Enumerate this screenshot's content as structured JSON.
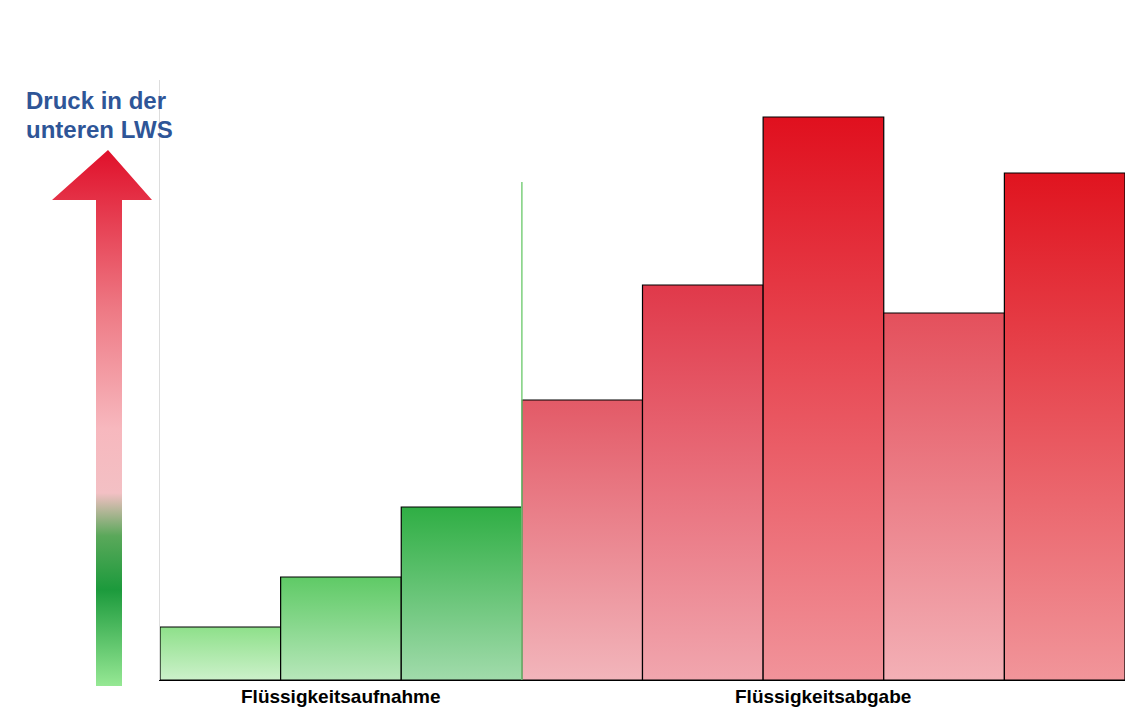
{
  "chart_data": {
    "type": "bar",
    "y_label": "Druck in der unteren LWS",
    "categories": [
      null,
      null,
      null,
      null,
      null,
      null,
      null,
      null
    ],
    "values": [
      53,
      103,
      173,
      280,
      395,
      563,
      367,
      507
    ],
    "colors": [
      "#8ee08a",
      "#5fca66",
      "#2fae44",
      "#e35a67",
      "#e0394a",
      "#e0101e",
      "#e4505c",
      "#e0141f"
    ],
    "groups": [
      {
        "name": "Flüssigkeitsaufnahme",
        "count": 3
      },
      {
        "name": "Flüssigkeitsabgabe",
        "count": 5
      }
    ],
    "ylim": [
      0,
      600
    ],
    "tick_labels": false,
    "grid": false
  }
}
